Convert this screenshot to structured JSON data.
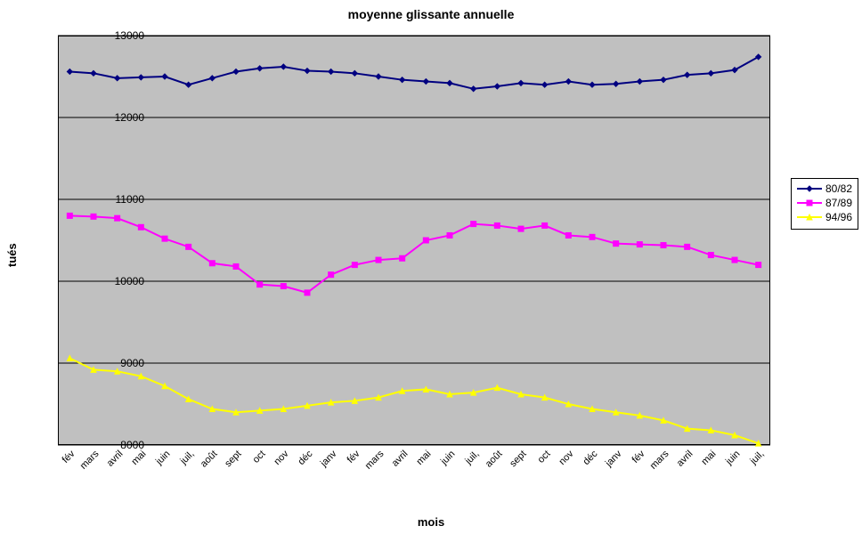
{
  "chart": {
    "type": "line",
    "title": "moyenne glissante annuelle",
    "title_fontsize": 14,
    "xlabel": "mois",
    "ylabel": "tués",
    "label_fontsize": 13,
    "tick_fontsize": 12,
    "background_color": "#ffffff",
    "plot_background_color": "#c0c0c0",
    "grid_color": "#000000",
    "grid_on": true,
    "ylim": [
      8000,
      13000
    ],
    "ytick_step": 1000,
    "yticks": [
      8000,
      9000,
      10000,
      11000,
      12000,
      13000
    ],
    "xcategories": [
      "fév",
      "mars",
      "avril",
      "mai",
      "juin",
      "juil,",
      "août",
      "sept",
      "oct",
      "nov",
      "déc",
      "janv",
      "fév",
      "mars",
      "avril",
      "mai",
      "juin",
      "juil,",
      "août",
      "sept",
      "oct",
      "nov",
      "déc",
      "janv",
      "fév",
      "mars",
      "avril",
      "mai",
      "juin",
      "juil,"
    ],
    "line_width": 2,
    "marker_size": 6,
    "legend_background": "#ffffff",
    "legend_border": "#000000",
    "series": [
      {
        "name": "80/82",
        "color": "#000080",
        "marker": "diamond",
        "values": [
          12560,
          12540,
          12480,
          12490,
          12500,
          12400,
          12480,
          12560,
          12600,
          12620,
          12570,
          12560,
          12540,
          12500,
          12460,
          12440,
          12420,
          12350,
          12380,
          12420,
          12400,
          12440,
          12400,
          12410,
          12440,
          12460,
          12520,
          12540,
          12580,
          12740
        ]
      },
      {
        "name": "87/89",
        "color": "#ff00ff",
        "marker": "square",
        "values": [
          10800,
          10790,
          10770,
          10660,
          10520,
          10420,
          10220,
          10180,
          9960,
          9940,
          9860,
          10080,
          10200,
          10260,
          10280,
          10500,
          10560,
          10700,
          10680,
          10640,
          10680,
          10560,
          10540,
          10460,
          10450,
          10440,
          10420,
          10320,
          10260,
          10200
        ]
      },
      {
        "name": "94/96",
        "color": "#ffff00",
        "marker": "triangle",
        "values": [
          9060,
          8920,
          8900,
          8840,
          8720,
          8560,
          8440,
          8400,
          8420,
          8440,
          8480,
          8520,
          8540,
          8580,
          8660,
          8680,
          8620,
          8640,
          8700,
          8620,
          8580,
          8500,
          8440,
          8400,
          8360,
          8300,
          8200,
          8180,
          8120,
          8020
        ]
      }
    ]
  }
}
